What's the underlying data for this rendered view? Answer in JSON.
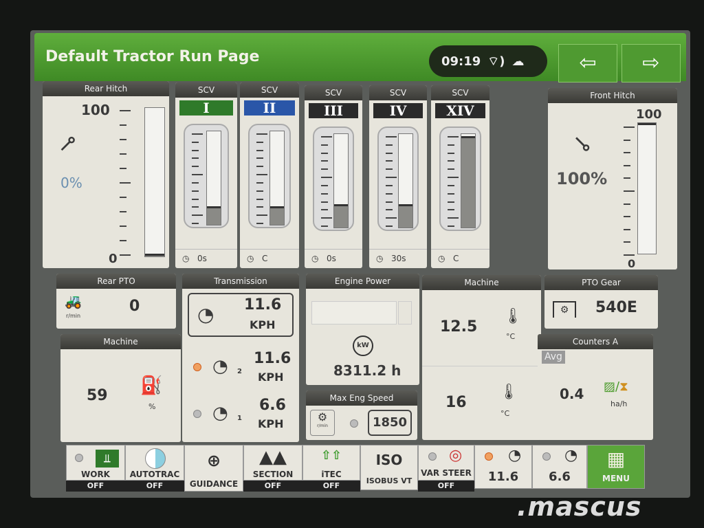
{
  "header": {
    "title": "Default Tractor Run Page",
    "time": "09:19",
    "back_icon": "arrow-left-icon",
    "forward_icon": "arrow-right-icon"
  },
  "rear_hitch": {
    "title": "Rear Hitch",
    "value": "0%",
    "scale_max": "100",
    "scale_min": "0",
    "level_percent": 0
  },
  "scv": [
    {
      "header": "SCV",
      "label": "I",
      "label_color": "#2f7a2a",
      "level_percent": 20,
      "timer": "0s"
    },
    {
      "header": "SCV",
      "label": "II",
      "label_color": "#2a56a8",
      "level_percent": 20,
      "timer": "C"
    },
    {
      "header": "SCV",
      "label": "III",
      "label_color": "#2a2a2a",
      "level_percent": 25,
      "timer": "0s"
    },
    {
      "header": "SCV",
      "label": "IV",
      "label_color": "#2a2a2a",
      "level_percent": 25,
      "timer": "30s"
    },
    {
      "header": "SCV",
      "label": "XIV",
      "label_color": "#2a2a2a",
      "level_percent": 98,
      "timer": "C"
    }
  ],
  "front_hitch": {
    "title": "Front Hitch",
    "value": "100%",
    "scale_max": "100",
    "scale_min": "0",
    "level_percent": 100
  },
  "rear_pto": {
    "title": "Rear PTO",
    "value": "0",
    "unit": "r/min"
  },
  "machine_left": {
    "title": "Machine",
    "value": "59",
    "unit": "%"
  },
  "transmission": {
    "title": "Transmission",
    "speed": "11.6",
    "unit": "KPH",
    "set2": "11.6",
    "set2_unit": "KPH",
    "set1": "6.6",
    "set1_unit": "KPH",
    "set2_num": "2",
    "set1_num": "1"
  },
  "engine_power": {
    "title": "Engine Power",
    "icon_label": "kW",
    "hours": "8311.2 h"
  },
  "max_eng_speed": {
    "title": "Max Eng Speed",
    "icon_unit": "r/min",
    "value": "1850"
  },
  "machine_right": {
    "title": "Machine",
    "value1": "12.5",
    "unit1": "°C",
    "value2": "16",
    "unit2": "°C"
  },
  "pto_gear": {
    "title": "PTO Gear",
    "value": "540E"
  },
  "counters": {
    "title": "Counters A",
    "tag": "Avg",
    "value": "0.4",
    "unit": "ha/h"
  },
  "bottom": {
    "work": "WORK",
    "work_state": "OFF",
    "autotrac": "AUTOTRAC",
    "autotrac_state": "OFF",
    "guidance": "GUIDANCE",
    "section": "SECTION CTL",
    "section_state": "OFF",
    "itec": "iTEC",
    "itec_state": "OFF",
    "iso": "ISO",
    "isobus": "ISOBUS VT",
    "varsteer": "VAR STEER",
    "varsteer_state": "OFF",
    "speed2": "11.6",
    "speed1": "6.6",
    "menu": "MENU"
  },
  "watermark": ".mascus",
  "colors": {
    "header_green": "#4f9a31",
    "panel_bg": "#e7e5dc",
    "led_on": "#f0a060"
  }
}
